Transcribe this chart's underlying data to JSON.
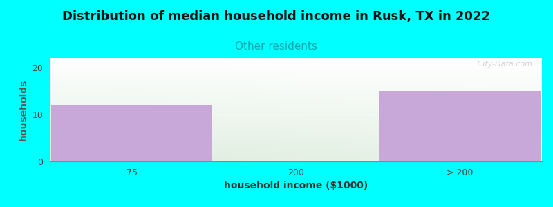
{
  "title": "Distribution of median household income in Rusk, TX in 2022",
  "subtitle": "Other residents",
  "xlabel": "household income ($1000)",
  "ylabel": "households",
  "categories": [
    "75",
    "200",
    "> 200"
  ],
  "values": [
    12,
    0,
    15
  ],
  "bar_color": "#c8a8d8",
  "background_color": "#00FFFF",
  "plot_bg_color_topleft": "#FFFFFF",
  "plot_bg_color_bottomleft": "#DDEEDD",
  "plot_bg_color_topright": "#FFFFFF",
  "ylim": [
    0,
    22
  ],
  "yticks": [
    0,
    10,
    20
  ],
  "title_fontsize": 13,
  "subtitle_fontsize": 11,
  "subtitle_color": "#00AAAA",
  "axis_label_fontsize": 10,
  "tick_fontsize": 9,
  "watermark": "   City-Data.com"
}
